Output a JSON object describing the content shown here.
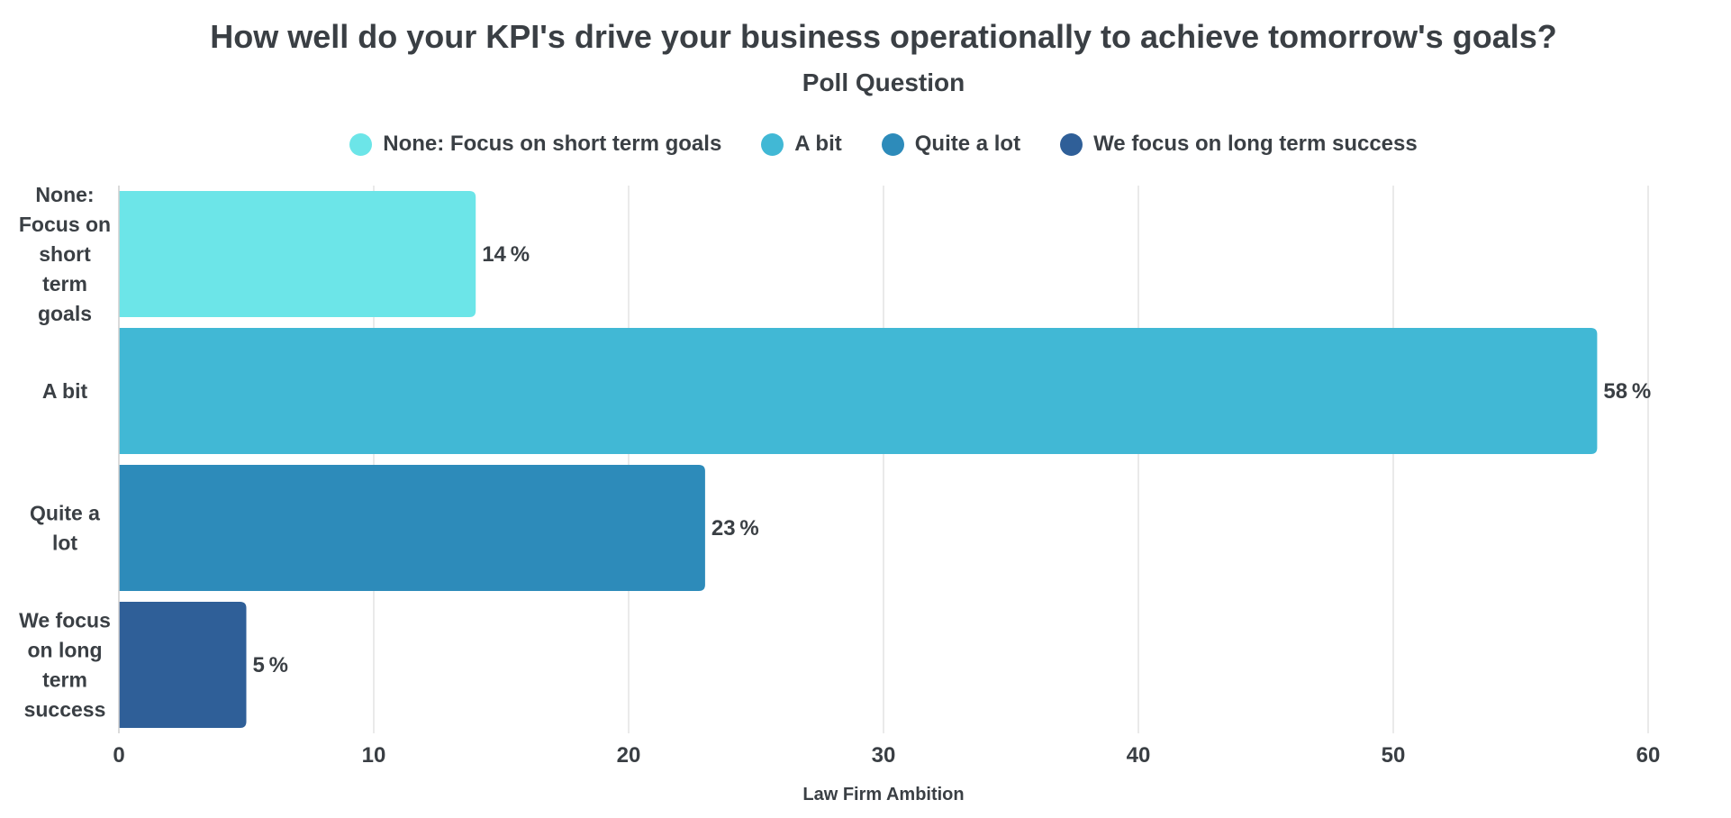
{
  "chart_data": {
    "type": "bar",
    "orientation": "horizontal",
    "title": "How well do your KPI's drive your business operationally to achieve tomorrow's goals?",
    "subtitle": "Poll Question",
    "xlabel": "Law Firm Ambition",
    "ylabel": "",
    "xlim": [
      0,
      60
    ],
    "x_ticks": [
      0,
      10,
      20,
      30,
      40,
      50,
      60
    ],
    "grid": true,
    "legend_position": "top-center",
    "value_suffix": "%",
    "categories": [
      "None: Focus on short term goals",
      "A bit",
      "Quite a lot",
      "We focus on long term success"
    ],
    "category_label_lines": [
      [
        "None:",
        "Focus on",
        "short",
        "term",
        "goals"
      ],
      [
        "A bit"
      ],
      [
        "Quite a",
        "lot"
      ],
      [
        "We focus",
        "on long",
        "term",
        "success"
      ]
    ],
    "values": [
      14,
      58,
      23,
      5
    ],
    "colors": [
      "#6ce5e8",
      "#41b8d5",
      "#2d8bba",
      "#2f5f98"
    ]
  }
}
